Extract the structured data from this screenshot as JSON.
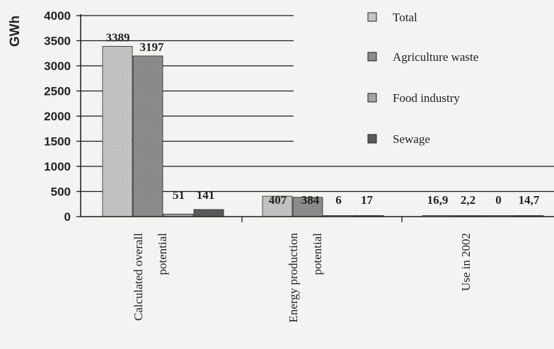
{
  "chart_data": {
    "type": "bar",
    "ylabel": "GWh",
    "ylim": [
      0,
      4000
    ],
    "yticks": [
      0,
      500,
      1000,
      1500,
      2000,
      2500,
      3000,
      3500,
      4000
    ],
    "grid": true,
    "legend_position": "top-right",
    "categories": [
      [
        "Calculated overall",
        "potential"
      ],
      [
        "Energy production",
        "potential"
      ],
      [
        "Use in 2002"
      ]
    ],
    "series": [
      {
        "name": "Total",
        "color": "#c4c4c4",
        "values": [
          3389,
          407,
          16.9
        ],
        "labels": [
          "3389",
          "407",
          "16,9"
        ]
      },
      {
        "name": "Agriculture waste",
        "color": "#8c8c8c",
        "values": [
          3197,
          384,
          2.2
        ],
        "labels": [
          "3197",
          "384",
          "2,2"
        ]
      },
      {
        "name": "Food industry",
        "color": "#a4a4a4",
        "values": [
          51,
          6,
          0
        ],
        "labels": [
          "51",
          "6",
          "0"
        ]
      },
      {
        "name": "Sewage",
        "color": "#5c5c5c",
        "values": [
          141,
          17,
          14.7
        ],
        "labels": [
          "141",
          "17",
          "14,7"
        ]
      }
    ]
  }
}
